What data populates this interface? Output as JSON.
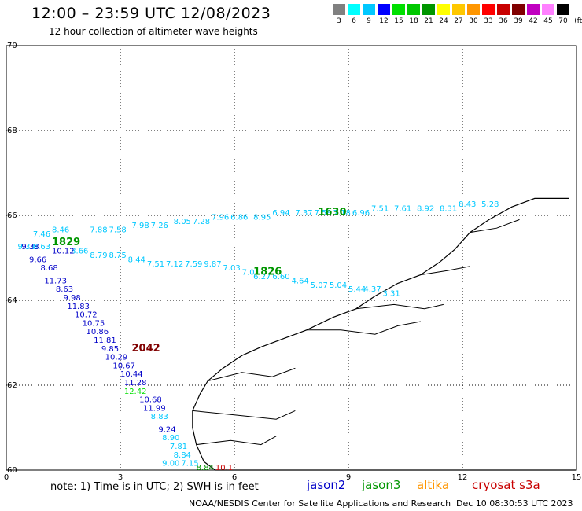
{
  "header": {
    "title": "12:00 – 23:59 UTC 12/08/2023",
    "subtitle": "12 hour collection of altimeter wave heights"
  },
  "legend": {
    "unit": "(ft)",
    "bins": [
      {
        "color": "#808080",
        "label": "3"
      },
      {
        "color": "#00ffff",
        "label": "6"
      },
      {
        "color": "#00c8ff",
        "label": "9"
      },
      {
        "color": "#0000ff",
        "label": "12"
      },
      {
        "color": "#00e000",
        "label": "15"
      },
      {
        "color": "#00c800",
        "label": "18"
      },
      {
        "color": "#009600",
        "label": "21"
      },
      {
        "color": "#ffff00",
        "label": "24"
      },
      {
        "color": "#ffc800",
        "label": "27"
      },
      {
        "color": "#ff9600",
        "label": "30"
      },
      {
        "color": "#ff0000",
        "label": "33"
      },
      {
        "color": "#c80000",
        "label": "36"
      },
      {
        "color": "#800000",
        "label": "39"
      },
      {
        "color": "#c000c0",
        "label": "42"
      },
      {
        "color": "#ff80ff",
        "label": "45"
      },
      {
        "color": "#000000",
        "label": "70"
      }
    ]
  },
  "axes": {
    "x_ticks": [
      "0",
      "3",
      "6",
      "9",
      "12",
      "15"
    ],
    "y_ticks": [
      "60",
      "62",
      "64",
      "66",
      "68",
      "70"
    ]
  },
  "tracks": [
    {
      "satellite": "jason3-west",
      "color": "#00c8ff",
      "points": [
        {
          "lon": 0.3,
          "lat": 65.2,
          "v": "9.33"
        },
        {
          "lon": 0.7,
          "lat": 65.5,
          "v": "7.46"
        },
        {
          "lon": 1.2,
          "lat": 65.6,
          "v": "8.46"
        },
        {
          "lon": 2.2,
          "lat": 65.6,
          "v": "7.88"
        },
        {
          "lon": 2.7,
          "lat": 65.6,
          "v": "7.58"
        },
        {
          "lon": 3.3,
          "lat": 65.7,
          "v": "7.98"
        },
        {
          "lon": 3.8,
          "lat": 65.7,
          "v": "7.26"
        },
        {
          "lon": 4.4,
          "lat": 65.8,
          "v": "8.05"
        },
        {
          "lon": 4.9,
          "lat": 65.8,
          "v": "7.28"
        },
        {
          "lon": 5.4,
          "lat": 65.9,
          "v": "7.96"
        },
        {
          "lon": 5.9,
          "lat": 65.9,
          "v": "6.86"
        },
        {
          "lon": 6.5,
          "lat": 65.9,
          "v": "8.95"
        },
        {
          "lon": 7.0,
          "lat": 66.0,
          "v": "6.94"
        },
        {
          "lon": 7.6,
          "lat": 66.0,
          "v": "7.37"
        },
        {
          "lon": 8.1,
          "lat": 66.0,
          "v": "7.58"
        },
        {
          "lon": 8.6,
          "lat": 66.0,
          "v": "7.18"
        },
        {
          "lon": 9.1,
          "lat": 66.0,
          "v": "6.96"
        },
        {
          "lon": 9.6,
          "lat": 66.1,
          "v": "7.51"
        },
        {
          "lon": 10.2,
          "lat": 66.1,
          "v": "7.61"
        },
        {
          "lon": 10.8,
          "lat": 66.1,
          "v": "8.92"
        },
        {
          "lon": 11.4,
          "lat": 66.1,
          "v": "8.31"
        },
        {
          "lon": 11.9,
          "lat": 66.2,
          "v": "8.43"
        },
        {
          "lon": 12.5,
          "lat": 66.2,
          "v": "5.28"
        }
      ]
    },
    {
      "satellite": "jason3-mid",
      "color": "#00c8ff",
      "points": [
        {
          "lon": 0.7,
          "lat": 65.2,
          "v": "8.63"
        },
        {
          "lon": 1.7,
          "lat": 65.1,
          "v": "8.66"
        },
        {
          "lon": 2.2,
          "lat": 65.0,
          "v": "8.79"
        },
        {
          "lon": 2.7,
          "lat": 65.0,
          "v": "8.75"
        },
        {
          "lon": 3.2,
          "lat": 64.9,
          "v": "8.44"
        },
        {
          "lon": 3.7,
          "lat": 64.8,
          "v": "7.51"
        },
        {
          "lon": 4.2,
          "lat": 64.8,
          "v": "7.12"
        },
        {
          "lon": 4.7,
          "lat": 64.8,
          "v": "7.59"
        },
        {
          "lon": 5.2,
          "lat": 64.8,
          "v": "9.87"
        },
        {
          "lon": 5.7,
          "lat": 64.7,
          "v": "7.03"
        },
        {
          "lon": 6.2,
          "lat": 64.6,
          "v": "7.01"
        },
        {
          "lon": 6.5,
          "lat": 64.5,
          "v": "6.27"
        },
        {
          "lon": 7.0,
          "lat": 64.5,
          "v": "6.60"
        },
        {
          "lon": 7.5,
          "lat": 64.4,
          "v": "4.64"
        },
        {
          "lon": 8.0,
          "lat": 64.3,
          "v": "5.07"
        },
        {
          "lon": 8.5,
          "lat": 64.3,
          "v": "5.04"
        },
        {
          "lon": 9.0,
          "lat": 64.2,
          "v": "5.44"
        },
        {
          "lon": 9.4,
          "lat": 64.2,
          "v": "4.37"
        },
        {
          "lon": 9.9,
          "lat": 64.1,
          "v": "3.31"
        }
      ]
    },
    {
      "satellite": "jason2-south",
      "color": "#0000c8",
      "points": [
        {
          "lon": 0.4,
          "lat": 65.2,
          "v": "9.38"
        },
        {
          "lon": 1.2,
          "lat": 65.1,
          "v": "10.12"
        },
        {
          "lon": 0.6,
          "lat": 64.9,
          "v": "9.66"
        },
        {
          "lon": 0.9,
          "lat": 64.7,
          "v": "8.68"
        },
        {
          "lon": 1.0,
          "lat": 64.4,
          "v": "11.73"
        },
        {
          "lon": 1.3,
          "lat": 64.2,
          "v": "8.63"
        },
        {
          "lon": 1.5,
          "lat": 64.0,
          "v": "9.98"
        },
        {
          "lon": 1.6,
          "lat": 63.8,
          "v": "11.83"
        },
        {
          "lon": 1.8,
          "lat": 63.6,
          "v": "10.72"
        },
        {
          "lon": 2.0,
          "lat": 63.4,
          "v": "10.75"
        },
        {
          "lon": 2.1,
          "lat": 63.2,
          "v": "10.86"
        },
        {
          "lon": 2.3,
          "lat": 63.0,
          "v": "11.81"
        },
        {
          "lon": 2.5,
          "lat": 62.8,
          "v": "9.85"
        },
        {
          "lon": 2.6,
          "lat": 62.6,
          "v": "10.29"
        },
        {
          "lon": 2.8,
          "lat": 62.4,
          "v": "10.67"
        },
        {
          "lon": 3.0,
          "lat": 62.2,
          "v": "10.44"
        },
        {
          "lon": 3.1,
          "lat": 62.0,
          "v": "11.28"
        },
        {
          "lon": 3.5,
          "lat": 61.6,
          "v": "10.68"
        },
        {
          "lon": 3.6,
          "lat": 61.4,
          "v": "11.99"
        },
        {
          "lon": 4.0,
          "lat": 60.9,
          "v": "9.24"
        }
      ]
    },
    {
      "satellite": "jason3-south",
      "color": "#00c8ff",
      "points": [
        {
          "lon": 3.8,
          "lat": 61.2,
          "v": "8.83"
        },
        {
          "lon": 4.1,
          "lat": 60.7,
          "v": "8.90"
        },
        {
          "lon": 4.3,
          "lat": 60.5,
          "v": "7.81"
        },
        {
          "lon": 4.4,
          "lat": 60.3,
          "v": "8.84"
        },
        {
          "lon": 4.1,
          "lat": 60.1,
          "v": "9.00"
        },
        {
          "lon": 4.6,
          "lat": 60.1,
          "v": "7.15"
        }
      ]
    },
    {
      "satellite": "jason3-south-green",
      "color": "#00e000",
      "points": [
        {
          "lon": 3.1,
          "lat": 61.8,
          "v": "12.42"
        }
      ]
    },
    {
      "satellite": "jason3-south-green2",
      "color": "#009600",
      "points": [
        {
          "lon": 5.0,
          "lat": 60.0,
          "v": "8.84"
        }
      ]
    },
    {
      "satellite": "cryosat-south",
      "color": "#c80000",
      "points": [
        {
          "lon": 5.5,
          "lat": 60.0,
          "v": "10.1"
        }
      ]
    }
  ],
  "pass_ids": [
    {
      "text": "1829",
      "lon": 1.2,
      "lat": 65.3,
      "color": "#009600"
    },
    {
      "text": "1826",
      "lon": 6.5,
      "lat": 64.6,
      "color": "#009600"
    },
    {
      "text": "1630",
      "lon": 8.2,
      "lat": 66.0,
      "color": "#009600"
    },
    {
      "text": "2042",
      "lon": 3.3,
      "lat": 62.8,
      "color": "#800000"
    }
  ],
  "footer": {
    "note": "note: 1) Time is in UTC; 2) SWH is in feet",
    "satellites": [
      {
        "name": "jason2",
        "color": "#0000c8"
      },
      {
        "name": "jason3",
        "color": "#009600"
      },
      {
        "name": "altika",
        "color": "#ff9600"
      },
      {
        "name": "cryosat s3a",
        "color": "#c80000"
      }
    ],
    "credit": "NOAA/NESDIS Center for Satellite Applications and Research",
    "timestamp": "Dec 10 08:30:53 UTC 2023"
  },
  "coast": [
    [
      [
        14.8,
        66.4
      ],
      [
        13.9,
        66.4
      ],
      [
        13.3,
        66.2
      ],
      [
        12.7,
        65.9
      ],
      [
        12.2,
        65.6
      ],
      [
        11.8,
        65.2
      ],
      [
        11.4,
        64.9
      ],
      [
        10.9,
        64.6
      ],
      [
        10.3,
        64.4
      ],
      [
        9.7,
        64.1
      ],
      [
        9.2,
        63.8
      ],
      [
        8.6,
        63.6
      ],
      [
        7.9,
        63.3
      ],
      [
        7.3,
        63.1
      ],
      [
        6.7,
        62.9
      ],
      [
        6.2,
        62.7
      ],
      [
        5.7,
        62.4
      ],
      [
        5.3,
        62.1
      ],
      [
        5.1,
        61.8
      ],
      [
        4.9,
        61.4
      ],
      [
        4.9,
        61.0
      ],
      [
        5.0,
        60.6
      ],
      [
        5.2,
        60.2
      ],
      [
        5.5,
        60.0
      ],
      [
        15.0,
        60.0
      ]
    ]
  ],
  "fjords": [
    [
      [
        5.3,
        62.1
      ],
      [
        6.2,
        62.3
      ],
      [
        7.0,
        62.2
      ],
      [
        7.6,
        62.4
      ]
    ],
    [
      [
        4.9,
        61.4
      ],
      [
        6.0,
        61.3
      ],
      [
        7.1,
        61.2
      ],
      [
        7.6,
        61.4
      ]
    ],
    [
      [
        5.0,
        60.6
      ],
      [
        5.9,
        60.7
      ],
      [
        6.7,
        60.6
      ],
      [
        7.1,
        60.8
      ]
    ],
    [
      [
        7.9,
        63.3
      ],
      [
        8.8,
        63.3
      ],
      [
        9.7,
        63.2
      ],
      [
        10.3,
        63.4
      ],
      [
        10.9,
        63.5
      ]
    ],
    [
      [
        9.2,
        63.8
      ],
      [
        10.2,
        63.9
      ],
      [
        11.0,
        63.8
      ],
      [
        11.5,
        63.9
      ]
    ],
    [
      [
        10.9,
        64.6
      ],
      [
        11.6,
        64.7
      ],
      [
        12.2,
        64.8
      ]
    ],
    [
      [
        12.2,
        65.6
      ],
      [
        12.9,
        65.7
      ],
      [
        13.5,
        65.9
      ]
    ]
  ]
}
